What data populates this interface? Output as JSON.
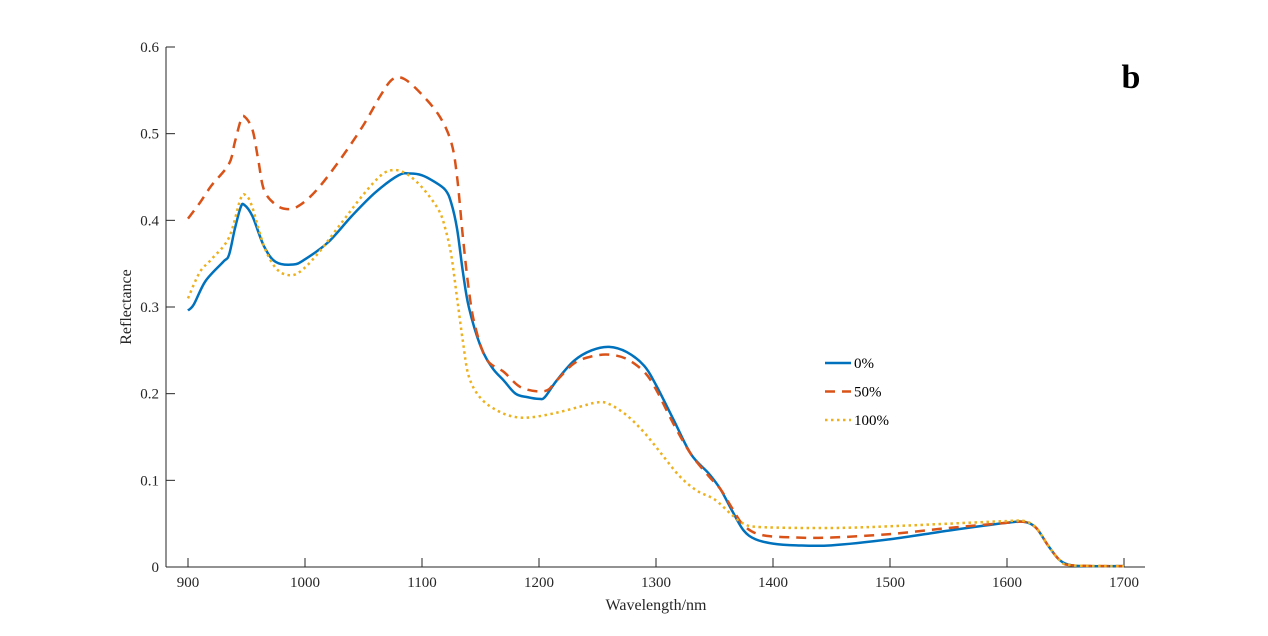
{
  "chart_data": {
    "type": "line",
    "panel_label": "b",
    "xlabel": "Wavelength/nm",
    "ylabel": "Reflectance",
    "xlim": [
      880,
      1720
    ],
    "ylim": [
      0,
      0.6
    ],
    "xticks": [
      900,
      1000,
      1100,
      1200,
      1300,
      1400,
      1500,
      1600,
      1700
    ],
    "yticks": [
      0,
      0.1,
      0.2,
      0.3,
      0.4,
      0.5,
      0.6
    ],
    "xtick_labels": [
      "900",
      "1000",
      "1100",
      "1200",
      "1300",
      "1400",
      "1500",
      "1600",
      "1700"
    ],
    "ytick_labels": [
      "0",
      "0.1",
      "0.2",
      "0.3",
      "0.4",
      "0.5",
      "0.6"
    ],
    "grid": false,
    "legend_placement": "center-right",
    "series": [
      {
        "name": "0%",
        "color": "#0072BD",
        "style": "solid",
        "x": [
          900,
          905,
          915,
          930,
          935,
          940,
          945,
          948,
          955,
          965,
          975,
          990,
          1000,
          1020,
          1040,
          1060,
          1080,
          1090,
          1100,
          1110,
          1120,
          1125,
          1130,
          1135,
          1140,
          1150,
          1160,
          1170,
          1180,
          1190,
          1200,
          1205,
          1215,
          1230,
          1245,
          1260,
          1275,
          1290,
          1300,
          1315,
          1330,
          1345,
          1355,
          1365,
          1375,
          1385,
          1400,
          1420,
          1450,
          1500,
          1550,
          1600,
          1615,
          1625,
          1635,
          1645,
          1655,
          1670,
          1700
        ],
        "y": [
          0.296,
          0.303,
          0.33,
          0.352,
          0.36,
          0.39,
          0.415,
          0.418,
          0.405,
          0.37,
          0.352,
          0.349,
          0.355,
          0.375,
          0.405,
          0.432,
          0.452,
          0.454,
          0.452,
          0.445,
          0.435,
          0.42,
          0.39,
          0.34,
          0.3,
          0.255,
          0.23,
          0.215,
          0.2,
          0.196,
          0.194,
          0.196,
          0.215,
          0.238,
          0.25,
          0.254,
          0.248,
          0.232,
          0.21,
          0.17,
          0.13,
          0.108,
          0.09,
          0.065,
          0.042,
          0.032,
          0.027,
          0.025,
          0.025,
          0.032,
          0.042,
          0.051,
          0.052,
          0.045,
          0.025,
          0.008,
          0.002,
          0.001,
          0.001
        ]
      },
      {
        "name": "50%",
        "color": "#D95319",
        "style": "dashed",
        "x": [
          900,
          910,
          920,
          935,
          940,
          945,
          948,
          955,
          960,
          965,
          975,
          985,
          995,
          1010,
          1030,
          1050,
          1065,
          1075,
          1085,
          1100,
          1115,
          1125,
          1130,
          1135,
          1140,
          1145,
          1155,
          1170,
          1185,
          1205,
          1215,
          1230,
          1245,
          1260,
          1275,
          1290,
          1300,
          1315,
          1330,
          1345,
          1355,
          1365,
          1375,
          1390,
          1420,
          1450,
          1500,
          1550,
          1600,
          1615,
          1625,
          1635,
          1645,
          1655,
          1700
        ],
        "y": [
          0.402,
          0.42,
          0.44,
          0.465,
          0.49,
          0.515,
          0.52,
          0.505,
          0.47,
          0.435,
          0.418,
          0.413,
          0.417,
          0.435,
          0.47,
          0.51,
          0.545,
          0.563,
          0.563,
          0.545,
          0.52,
          0.49,
          0.45,
          0.38,
          0.32,
          0.28,
          0.24,
          0.225,
          0.207,
          0.203,
          0.215,
          0.235,
          0.243,
          0.245,
          0.24,
          0.225,
          0.205,
          0.165,
          0.13,
          0.105,
          0.09,
          0.068,
          0.048,
          0.037,
          0.034,
          0.034,
          0.038,
          0.045,
          0.051,
          0.052,
          0.045,
          0.025,
          0.008,
          0.002,
          0.001
        ]
      },
      {
        "name": "100%",
        "color": "#EDB120",
        "style": "dotted",
        "x": [
          900,
          910,
          920,
          935,
          945,
          950,
          955,
          965,
          975,
          985,
          995,
          1010,
          1030,
          1050,
          1065,
          1075,
          1085,
          1095,
          1105,
          1115,
          1120,
          1125,
          1130,
          1135,
          1140,
          1150,
          1165,
          1180,
          1195,
          1215,
          1235,
          1250,
          1260,
          1275,
          1290,
          1305,
          1320,
          1335,
          1350,
          1365,
          1375,
          1390,
          1450,
          1500,
          1550,
          1600,
          1615,
          1625,
          1635,
          1645,
          1655,
          1700
        ],
        "y": [
          0.31,
          0.34,
          0.355,
          0.38,
          0.425,
          0.428,
          0.415,
          0.37,
          0.345,
          0.337,
          0.34,
          0.36,
          0.395,
          0.43,
          0.452,
          0.458,
          0.455,
          0.445,
          0.43,
          0.41,
          0.39,
          0.36,
          0.31,
          0.26,
          0.22,
          0.195,
          0.18,
          0.173,
          0.173,
          0.178,
          0.185,
          0.19,
          0.188,
          0.175,
          0.155,
          0.13,
          0.105,
          0.088,
          0.078,
          0.06,
          0.05,
          0.046,
          0.045,
          0.047,
          0.05,
          0.053,
          0.053,
          0.045,
          0.025,
          0.008,
          0.002,
          0.001
        ]
      }
    ]
  }
}
